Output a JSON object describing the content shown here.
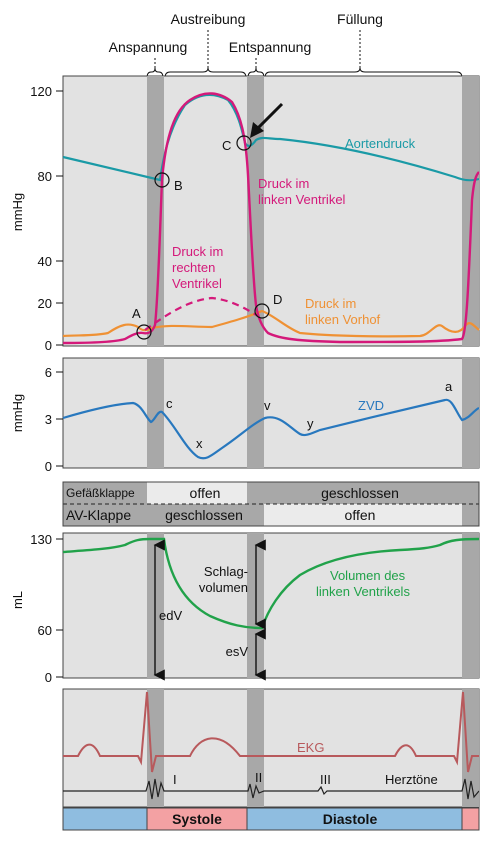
{
  "phases": {
    "anspannung": "Anspannung",
    "austreibung": "Austreibung",
    "entspannung": "Entspannung",
    "fuellung": "Füllung"
  },
  "pressure_panel": {
    "y_label": "mmHg",
    "ticks": [
      "120",
      "80",
      "40",
      "20",
      "0"
    ],
    "labels": {
      "aortendruck": "Aortendruck",
      "lv_line1": "Druck im",
      "lv_line2": "linken Ventrikel",
      "rv_line1": "Druck im",
      "rv_line2": "rechten",
      "rv_line3": "Ventrikel",
      "la_line1": "Druck im",
      "la_line2": "linken Vorhof"
    },
    "points": {
      "a": "A",
      "b": "B",
      "c": "C",
      "d": "D"
    }
  },
  "zvd_panel": {
    "y_label": "mmHg",
    "ticks": [
      "6",
      "3",
      "0"
    ],
    "curve_label": "ZVD",
    "waves": {
      "c": "c",
      "x": "x",
      "v": "v",
      "y": "y",
      "a": "a"
    }
  },
  "valves": {
    "row1_label": "Gefäßklappe",
    "row1_open": "offen",
    "row1_closed": "geschlossen",
    "row2_label": "AV-Klappe",
    "row2_closed": "geschlossen",
    "row2_open": "offen"
  },
  "volume_panel": {
    "y_label": "mL",
    "ticks": [
      "130",
      "60",
      "0"
    ],
    "schlag_line1": "Schlag-",
    "schlag_line2": "volumen",
    "edv": "edV",
    "esv": "esV",
    "curve_line1": "Volumen des",
    "curve_line2": "linken Ventrikels"
  },
  "ecg_panel": {
    "ekg": "EKG",
    "herztoene": "Herztöne",
    "tone1": "I",
    "tone2": "II",
    "tone3": "III"
  },
  "phase_bar": {
    "systole": "Systole",
    "diastole": "Diastole"
  },
  "colors": {
    "aorta": "#1a9aa6",
    "left_ventricle": "#d4197a",
    "left_atrium": "#ef9134",
    "zvd": "#2878be",
    "volume": "#21a24a",
    "ekg": "#b8595c",
    "systole": "#f3a1a3",
    "diastole": "#8fbde0"
  }
}
